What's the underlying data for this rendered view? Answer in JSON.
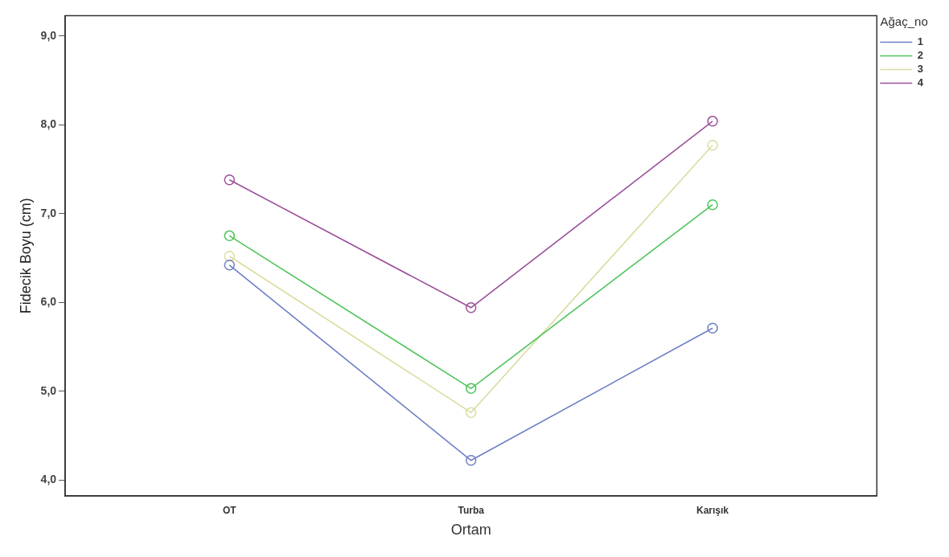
{
  "chart_data": {
    "type": "line",
    "xlabel": "Ortam",
    "ylabel": "Fidecik Boyu (cm)",
    "legend_title": "Ağaç_no",
    "categories": [
      "OT",
      "Turba",
      "Karışık"
    ],
    "series": [
      {
        "name": "1",
        "color": "#6e7fc4",
        "values": [
          6.42,
          4.22,
          5.71
        ]
      },
      {
        "name": "2",
        "color": "#4fc45a",
        "values": [
          6.75,
          5.03,
          7.1
        ]
      },
      {
        "name": "3",
        "color": "#dcdca0",
        "values": [
          6.52,
          4.76,
          7.77
        ]
      },
      {
        "name": "4",
        "color": "#9b4f9b",
        "values": [
          7.38,
          5.94,
          8.04
        ]
      }
    ],
    "ylim": [
      3.82,
      9.23
    ],
    "yticks": [
      {
        "value": 4,
        "label": "4,0"
      },
      {
        "value": 5,
        "label": "5,0"
      },
      {
        "value": 6,
        "label": "6,0"
      },
      {
        "value": 7,
        "label": "7,0"
      },
      {
        "value": 8,
        "label": "8,0"
      },
      {
        "value": 9,
        "label": "9,0"
      }
    ],
    "grid": false,
    "legend": "top right",
    "marker": "circle",
    "line_style": "solid"
  }
}
